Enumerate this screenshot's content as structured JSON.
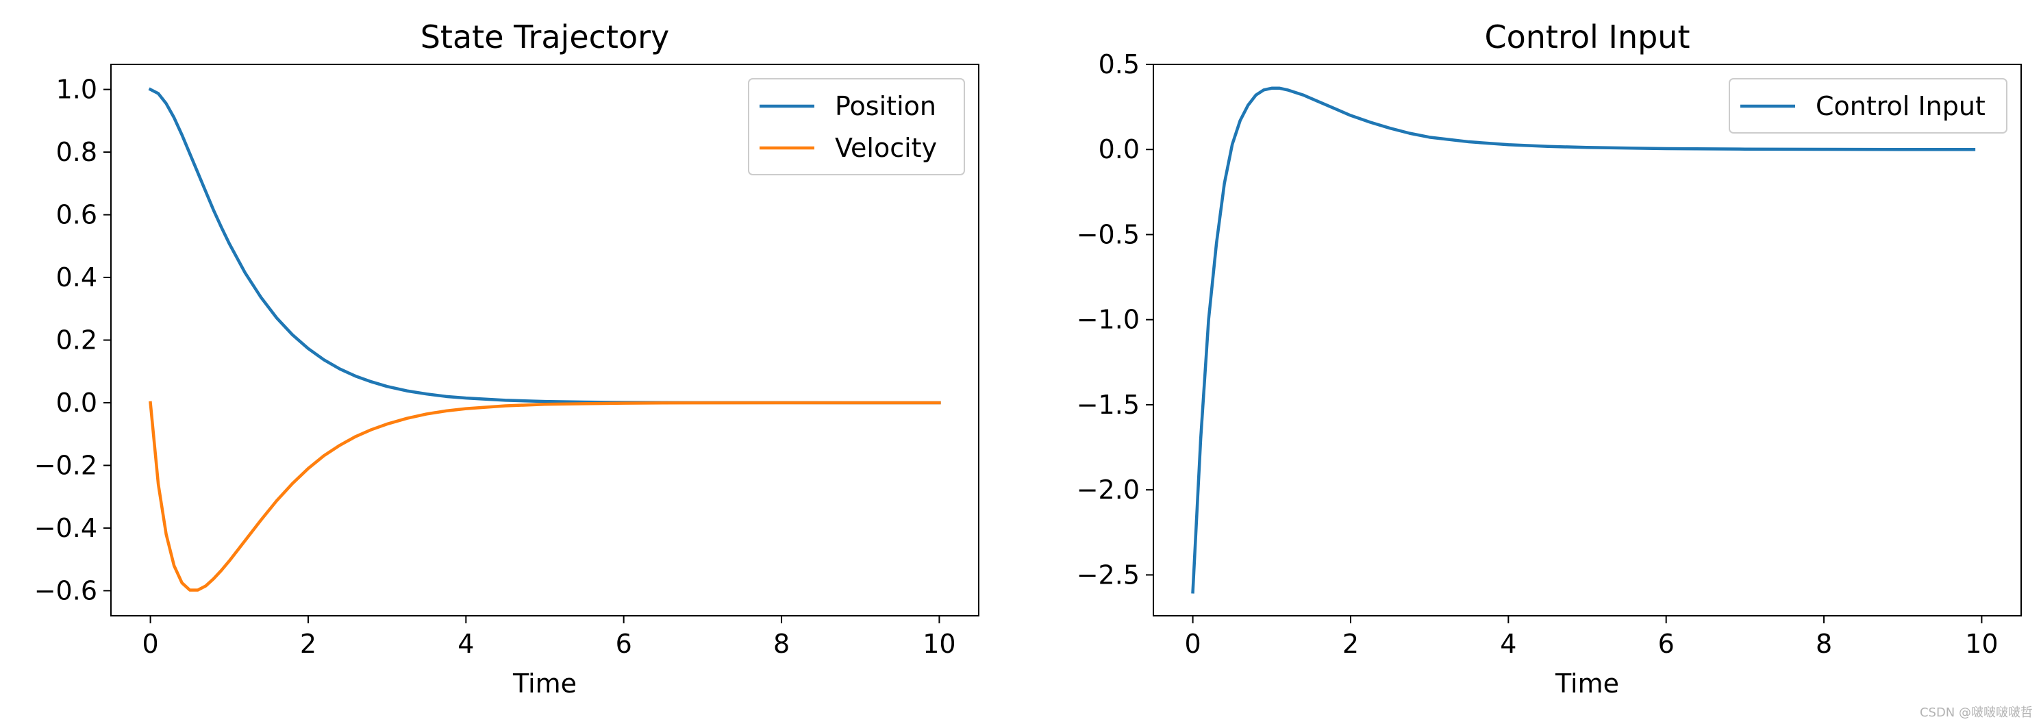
{
  "chart_data": [
    {
      "type": "line",
      "title": "State Trajectory",
      "xlabel": "Time",
      "ylabel": "",
      "xlim": [
        -0.5,
        10.5
      ],
      "ylim": [
        -0.68,
        1.08
      ],
      "xticks": [
        0,
        2,
        4,
        6,
        8,
        10
      ],
      "yticks": [
        -0.6,
        -0.4,
        -0.2,
        0.0,
        0.2,
        0.4,
        0.6,
        0.8,
        1.0
      ],
      "xtick_labels": [
        "0",
        "2",
        "4",
        "6",
        "8",
        "10"
      ],
      "ytick_labels": [
        "−0.6",
        "−0.4",
        "−0.2",
        "0.0",
        "0.2",
        "0.4",
        "0.6",
        "0.8",
        "1.0"
      ],
      "grid": false,
      "legend": "top-right",
      "series": [
        {
          "name": "Position",
          "color": "#1f77b4",
          "x": [
            0,
            0.1,
            0.2,
            0.3,
            0.4,
            0.5,
            0.6,
            0.7,
            0.8,
            0.9,
            1.0,
            1.2,
            1.4,
            1.6,
            1.8,
            2.0,
            2.2,
            2.4,
            2.6,
            2.8,
            3.0,
            3.25,
            3.5,
            3.75,
            4.0,
            4.5,
            5.0,
            5.5,
            6.0,
            6.5,
            7.0,
            8.0,
            9.0,
            10.0
          ],
          "y": [
            1.0,
            0.987,
            0.955,
            0.91,
            0.855,
            0.795,
            0.735,
            0.675,
            0.615,
            0.56,
            0.508,
            0.415,
            0.337,
            0.271,
            0.217,
            0.173,
            0.137,
            0.108,
            0.085,
            0.067,
            0.052,
            0.038,
            0.028,
            0.02,
            0.015,
            0.008,
            0.004,
            0.002,
            0.001,
            0.0005,
            0.0003,
            0.0001,
            0.0,
            0.0
          ]
        },
        {
          "name": "Velocity",
          "color": "#ff7f0e",
          "x": [
            0,
            0.1,
            0.2,
            0.3,
            0.4,
            0.5,
            0.6,
            0.7,
            0.8,
            0.9,
            1.0,
            1.2,
            1.4,
            1.6,
            1.8,
            2.0,
            2.2,
            2.4,
            2.6,
            2.8,
            3.0,
            3.25,
            3.5,
            3.75,
            4.0,
            4.5,
            5.0,
            5.5,
            6.0,
            6.5,
            7.0,
            8.0,
            9.0,
            10.0
          ],
          "y": [
            0.0,
            -0.26,
            -0.42,
            -0.52,
            -0.575,
            -0.598,
            -0.598,
            -0.585,
            -0.562,
            -0.535,
            -0.505,
            -0.44,
            -0.375,
            -0.313,
            -0.258,
            -0.21,
            -0.169,
            -0.136,
            -0.108,
            -0.086,
            -0.068,
            -0.05,
            -0.036,
            -0.026,
            -0.019,
            -0.01,
            -0.005,
            -0.003,
            -0.0015,
            -0.0007,
            -0.0004,
            -0.0001,
            0.0,
            0.0
          ]
        }
      ]
    },
    {
      "type": "line",
      "title": "Control Input",
      "xlabel": "Time",
      "ylabel": "",
      "xlim": [
        -0.5,
        10.5
      ],
      "ylim": [
        -2.74,
        0.5
      ],
      "xticks": [
        0,
        2,
        4,
        6,
        8,
        10
      ],
      "yticks": [
        -2.5,
        -2.0,
        -1.5,
        -1.0,
        -0.5,
        0.0,
        0.5
      ],
      "xtick_labels": [
        "0",
        "2",
        "4",
        "6",
        "8",
        "10"
      ],
      "ytick_labels": [
        "−2.5",
        "−2.0",
        "−1.5",
        "−1.0",
        "−0.5",
        "0.0",
        "0.5"
      ],
      "grid": false,
      "legend": "top-right",
      "series": [
        {
          "name": "Control Input",
          "color": "#1f77b4",
          "x": [
            0,
            0.1,
            0.2,
            0.3,
            0.4,
            0.5,
            0.6,
            0.7,
            0.8,
            0.9,
            1.0,
            1.1,
            1.2,
            1.4,
            1.6,
            1.8,
            2.0,
            2.25,
            2.5,
            2.75,
            3.0,
            3.5,
            4.0,
            4.5,
            5.0,
            6.0,
            7.0,
            8.0,
            9.0,
            9.9
          ],
          "y": [
            -2.6,
            -1.7,
            -1.0,
            -0.55,
            -0.2,
            0.03,
            0.17,
            0.26,
            0.32,
            0.35,
            0.36,
            0.36,
            0.35,
            0.32,
            0.28,
            0.24,
            0.2,
            0.16,
            0.125,
            0.095,
            0.072,
            0.045,
            0.028,
            0.018,
            0.012,
            0.005,
            0.002,
            0.001,
            0.0,
            0.0
          ]
        }
      ]
    }
  ],
  "watermark": "CSDN @啵啵啵啵哲"
}
